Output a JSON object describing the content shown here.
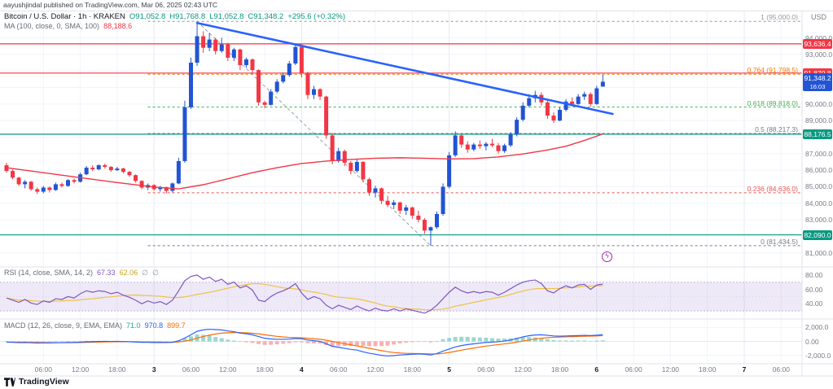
{
  "attribution": "aayushjindal published on TradingView.com, Mar 06, 2025 02:43 UTC",
  "watermark": "TradingView",
  "icons": {
    "sticker": "ϟ"
  },
  "legend": {
    "title": "Bitcoin / U.S. Dollar · 1h · KRAKEN",
    "o": "O91,052.8",
    "h": "H91,768.8",
    "l": "L91,052.8",
    "c": "C91,348.2",
    "change": "+295.6 (+0.32%)",
    "ma_label": "MA (100, close, 0, SMA, 100)",
    "ma_value": "88,188.6"
  },
  "rsi_legend": {
    "label": "RSI (14, close, SMA, 14, 2)",
    "value": "67.33",
    "ma_value": "62.06",
    "empty1": "∅",
    "empty2": "∅"
  },
  "macd_legend": {
    "label": "MACD (12, 26, close, 9, EMA, EMA)",
    "hist": "71.0",
    "macd": "970.8",
    "signal": "899.7"
  },
  "axis": {
    "currency": "USD",
    "price_ticks": [
      {
        "label": "94,000.0",
        "v": 94000
      },
      {
        "label": "93,000.0",
        "v": 93000
      },
      {
        "label": "92,000.0",
        "v": 92000
      },
      {
        "label": "91,000.0",
        "v": 91000
      },
      {
        "label": "90,000.0",
        "v": 90000
      },
      {
        "label": "89,000.0",
        "v": 89000
      },
      {
        "label": "88,000.0",
        "v": 88000
      },
      {
        "label": "87,000.0",
        "v": 87000
      },
      {
        "label": "86,000.0",
        "v": 86000
      },
      {
        "label": "85,000.0",
        "v": 85000
      },
      {
        "label": "84,000.0",
        "v": 84000
      },
      {
        "label": "83,000.0",
        "v": 83000
      },
      {
        "label": "82,000.0",
        "v": 82000
      },
      {
        "label": "81,000.0",
        "v": 81000
      }
    ],
    "rsi_ticks": [
      {
        "label": "80.00",
        "v": 80
      },
      {
        "label": "60.00",
        "v": 60
      },
      {
        "label": "40.00",
        "v": 40
      }
    ],
    "macd_ticks": [
      {
        "label": "2,000.0",
        "v": 2000
      },
      {
        "label": "0.00",
        "v": 0
      },
      {
        "label": "-2,000.0",
        "v": -2000
      }
    ],
    "time_labels": [
      {
        "t": "06:00",
        "b": 0
      },
      {
        "t": "12:00",
        "b": 0
      },
      {
        "t": "18:00",
        "b": 0
      },
      {
        "t": "3",
        "b": 1
      },
      {
        "t": "06:00",
        "b": 0
      },
      {
        "t": "12:00",
        "b": 0
      },
      {
        "t": "18:00",
        "b": 0
      },
      {
        "t": "4",
        "b": 1
      },
      {
        "t": "06:00",
        "b": 0
      },
      {
        "t": "12:00",
        "b": 0
      },
      {
        "t": "18:00",
        "b": 0
      },
      {
        "t": "5",
        "b": 1
      },
      {
        "t": "06:00",
        "b": 0
      },
      {
        "t": "12:00",
        "b": 0
      },
      {
        "t": "18:00",
        "b": 0
      },
      {
        "t": "6",
        "b": 1
      },
      {
        "t": "06:00",
        "b": 0
      },
      {
        "t": "12:00",
        "b": 0
      },
      {
        "t": "18:00",
        "b": 0
      },
      {
        "t": "7",
        "b": 1
      },
      {
        "t": "06:00",
        "b": 0
      }
    ]
  },
  "price_boxes": [
    {
      "label": "93,636.4",
      "price": 93636.4,
      "bg": "#f23645"
    },
    {
      "label": "91,870.8",
      "price": 91870.8,
      "bg": "#f23645"
    },
    {
      "label": "91,348.2",
      "price": 91348.2,
      "bg": "#2254d3",
      "countdown": "16:03"
    },
    {
      "label": "88,176.5",
      "price": 88176.5,
      "bg": "#089981"
    },
    {
      "label": "82,090.0",
      "price": 82090.0,
      "bg": "#089981"
    }
  ],
  "hlines": [
    {
      "price": 93636.4,
      "color": "#f23645"
    },
    {
      "price": 91870.8,
      "color": "#f23645"
    },
    {
      "price": 88176.5,
      "color": "#089981"
    },
    {
      "price": 82090.0,
      "color": "#089981"
    }
  ],
  "fib": {
    "x_start_idx": 23,
    "levels": [
      {
        "label": "1 (95,000.0)",
        "price": 95000,
        "color": "#9598a1"
      },
      {
        "label": "0.764 (91,798.5)",
        "price": 91798.5,
        "color": "#f57c00"
      },
      {
        "label": "0.618 (89,818.0)",
        "price": 89818,
        "color": "#4caf50"
      },
      {
        "label": "0.5 (88,217.3)",
        "price": 88217.3,
        "color": "#787b86"
      },
      {
        "label": "0.236 (84,636.0)",
        "price": 84636,
        "color": "#ef5350"
      },
      {
        "label": "0 (81,434.5)",
        "price": 81434.5,
        "color": "#787b86"
      }
    ]
  },
  "fib_diag": {
    "x1_idx": 31,
    "p1": 95000,
    "x2_idx": 69,
    "p2": 81434.5
  },
  "trendline": {
    "x1_idx": 31,
    "p1": 94900,
    "x2_idx": 98.6,
    "p2": 89400,
    "color": "#2962ff"
  },
  "colors": {
    "up": "#2254d3",
    "down": "#f23645",
    "ma": "#f23645",
    "rsi": "#7e57c2",
    "rsi_ma": "#f0c243",
    "macd": "#2962ff",
    "signal": "#ff6d00",
    "hist_pos": "#26a69a",
    "hist_neg": "#ef5350"
  },
  "chart_data": {
    "type": "candlestick",
    "title": "Bitcoin / U.S. Dollar 1h KRAKEN",
    "ylim": [
      80200,
      95600
    ],
    "rsi_range": [
      20,
      90
    ],
    "macd_range": [
      -3100,
      3100
    ],
    "candles": [
      [
        86300,
        86450,
        85850,
        85950
      ],
      [
        85950,
        86050,
        85450,
        85550
      ],
      [
        85550,
        85600,
        85050,
        85150
      ],
      [
        85150,
        85400,
        84900,
        85300
      ],
      [
        85300,
        85350,
        84750,
        84850
      ],
      [
        84850,
        84950,
        84550,
        84700
      ],
      [
        84700,
        85050,
        84600,
        84950
      ],
      [
        84950,
        85000,
        84650,
        84800
      ],
      [
        84800,
        85250,
        84750,
        85150
      ],
      [
        85150,
        85250,
        84950,
        85050
      ],
      [
        85050,
        85450,
        85000,
        85400
      ],
      [
        85400,
        85500,
        85200,
        85300
      ],
      [
        85300,
        85850,
        85250,
        85750
      ],
      [
        85750,
        86250,
        85700,
        86150
      ],
      [
        86150,
        86300,
        85950,
        86050
      ],
      [
        86050,
        86350,
        86000,
        86300
      ],
      [
        86300,
        86400,
        86100,
        86200
      ],
      [
        86200,
        86250,
        85900,
        86000
      ],
      [
        86000,
        86200,
        85950,
        86100
      ],
      [
        86100,
        86150,
        85800,
        85900
      ],
      [
        85900,
        85950,
        85600,
        85700
      ],
      [
        85700,
        85750,
        85250,
        85350
      ],
      [
        85350,
        85400,
        84850,
        84950
      ],
      [
        84950,
        85200,
        84800,
        85100
      ],
      [
        85100,
        85150,
        84750,
        84850
      ],
      [
        84850,
        85050,
        84700,
        84980
      ],
      [
        84980,
        85000,
        84600,
        84750
      ],
      [
        84750,
        85250,
        84650,
        85200
      ],
      [
        85200,
        86750,
        85150,
        86550
      ],
      [
        86550,
        90200,
        86450,
        89800
      ],
      [
        89800,
        92800,
        89700,
        92500
      ],
      [
        92500,
        95000,
        92300,
        94100
      ],
      [
        94100,
        94400,
        93100,
        93400
      ],
      [
        93400,
        94300,
        93200,
        93900
      ],
      [
        93900,
        94000,
        93000,
        93200
      ],
      [
        93200,
        94000,
        93100,
        93600
      ],
      [
        93600,
        93700,
        92600,
        92800
      ],
      [
        92800,
        93400,
        92600,
        93300
      ],
      [
        93300,
        93350,
        92050,
        92350
      ],
      [
        92350,
        92800,
        92200,
        92700
      ],
      [
        92700,
        92750,
        91800,
        92050
      ],
      [
        92050,
        92100,
        89900,
        90100
      ],
      [
        90100,
        90200,
        89750,
        89950
      ],
      [
        89950,
        90900,
        89900,
        90750
      ],
      [
        90750,
        91500,
        90650,
        91350
      ],
      [
        91350,
        91900,
        91250,
        91750
      ],
      [
        91750,
        92600,
        91650,
        92450
      ],
      [
        92450,
        93640,
        92350,
        93450
      ],
      [
        93450,
        93600,
        91600,
        91850
      ],
      [
        91850,
        91950,
        90300,
        90550
      ],
      [
        90550,
        91100,
        90300,
        90900
      ],
      [
        90900,
        90950,
        90250,
        90450
      ],
      [
        90450,
        90500,
        87900,
        88100
      ],
      [
        88100,
        88250,
        86350,
        86550
      ],
      [
        86550,
        87350,
        86450,
        87150
      ],
      [
        87150,
        87250,
        86250,
        86450
      ],
      [
        86450,
        86550,
        85750,
        85950
      ],
      [
        85950,
        86650,
        85850,
        86500
      ],
      [
        86500,
        86550,
        85250,
        85450
      ],
      [
        85450,
        85550,
        84450,
        84650
      ],
      [
        84650,
        85050,
        84350,
        84900
      ],
      [
        84900,
        84950,
        83950,
        84150
      ],
      [
        84150,
        84450,
        83750,
        83900
      ],
      [
        83900,
        84200,
        83650,
        84050
      ],
      [
        84050,
        84100,
        83350,
        83550
      ],
      [
        83550,
        83900,
        83300,
        83750
      ],
      [
        83750,
        83800,
        83050,
        83250
      ],
      [
        83250,
        83550,
        82850,
        83000
      ],
      [
        83000,
        83100,
        82150,
        82350
      ],
      [
        82350,
        82600,
        81434,
        82550
      ],
      [
        82550,
        83500,
        82450,
        83350
      ],
      [
        83350,
        85200,
        83250,
        85000
      ],
      [
        85000,
        87100,
        84900,
        86900
      ],
      [
        86900,
        88350,
        86800,
        88100
      ],
      [
        88100,
        88200,
        87350,
        87550
      ],
      [
        87550,
        87750,
        87050,
        87250
      ],
      [
        87250,
        87650,
        87150,
        87550
      ],
      [
        87550,
        87800,
        87300,
        87450
      ],
      [
        87450,
        87700,
        87200,
        87600
      ],
      [
        87600,
        87900,
        87400,
        87500
      ],
      [
        87500,
        87650,
        87000,
        87150
      ],
      [
        87150,
        87600,
        87050,
        87500
      ],
      [
        87500,
        88300,
        87400,
        88150
      ],
      [
        88150,
        89200,
        88050,
        89050
      ],
      [
        89050,
        90100,
        88950,
        89900
      ],
      [
        89900,
        90600,
        89800,
        90350
      ],
      [
        90350,
        90800,
        90100,
        90550
      ],
      [
        90550,
        90700,
        89900,
        90100
      ],
      [
        90100,
        90200,
        89100,
        89300
      ],
      [
        89300,
        89500,
        88850,
        89000
      ],
      [
        89000,
        89800,
        88950,
        89650
      ],
      [
        89650,
        90300,
        89550,
        90150
      ],
      [
        90150,
        90400,
        89850,
        90000
      ],
      [
        90000,
        90600,
        89950,
        90450
      ],
      [
        90450,
        90750,
        90250,
        90600
      ],
      [
        90600,
        90700,
        89850,
        90000
      ],
      [
        90000,
        91100,
        89950,
        90950
      ],
      [
        91052.8,
        91768.8,
        91052.8,
        91348.2
      ]
    ],
    "ma100": [
      [
        0,
        86150
      ],
      [
        6,
        85850
      ],
      [
        12,
        85550
      ],
      [
        18,
        85250
      ],
      [
        24,
        84980
      ],
      [
        28,
        84870
      ],
      [
        32,
        85120
      ],
      [
        36,
        85480
      ],
      [
        40,
        85850
      ],
      [
        44,
        86150
      ],
      [
        48,
        86400
      ],
      [
        52,
        86550
      ],
      [
        56,
        86650
      ],
      [
        60,
        86720
      ],
      [
        64,
        86750
      ],
      [
        68,
        86720
      ],
      [
        72,
        86680
      ],
      [
        76,
        86700
      ],
      [
        80,
        86800
      ],
      [
        84,
        86980
      ],
      [
        88,
        87220
      ],
      [
        91,
        87450
      ],
      [
        94,
        87800
      ],
      [
        97,
        88189
      ]
    ],
    "rsi": [
      48,
      45,
      42,
      46,
      41,
      39,
      44,
      42,
      47,
      46,
      50,
      48,
      54,
      58,
      56,
      58,
      57,
      54,
      56,
      52,
      49,
      45,
      40,
      44,
      41,
      43,
      39,
      45,
      58,
      72,
      78,
      80,
      74,
      77,
      71,
      74,
      67,
      70,
      62,
      65,
      59,
      45,
      43,
      50,
      55,
      58,
      62,
      68,
      55,
      46,
      50,
      47,
      38,
      33,
      38,
      35,
      32,
      37,
      33,
      30,
      34,
      31,
      30,
      33,
      30,
      33,
      31,
      29,
      27,
      31,
      38,
      47,
      56,
      63,
      58,
      55,
      57,
      55,
      57,
      56,
      52,
      56,
      61,
      66,
      70,
      72,
      73,
      68,
      58,
      55,
      61,
      65,
      62,
      66,
      67,
      60,
      66,
      67.33
    ],
    "macd": [
      -100,
      -140,
      -180,
      -160,
      -200,
      -230,
      -210,
      -220,
      -190,
      -185,
      -160,
      -155,
      -110,
      -60,
      -40,
      -10,
      5,
      -5,
      0,
      -20,
      -50,
      -90,
      -140,
      -140,
      -160,
      -150,
      -170,
      -130,
      80,
      480,
      950,
      1450,
      1650,
      1750,
      1700,
      1650,
      1500,
      1400,
      1200,
      1100,
      950,
      700,
      450,
      350,
      300,
      300,
      330,
      420,
      380,
      200,
      100,
      0,
      -350,
      -700,
      -850,
      -1000,
      -1150,
      -1250,
      -1500,
      -1700,
      -1850,
      -2000,
      -2100,
      -2050,
      -1950,
      -1900,
      -1850,
      -1800,
      -1850,
      -1950,
      -1750,
      -1400,
      -1100,
      -800,
      -600,
      -450,
      -350,
      -250,
      -150,
      -100,
      -50,
      50,
      200,
      420,
      650,
      820,
      920,
      950,
      870,
      780,
      750,
      780,
      800,
      830,
      870,
      830,
      900,
      970.8
    ]
  }
}
